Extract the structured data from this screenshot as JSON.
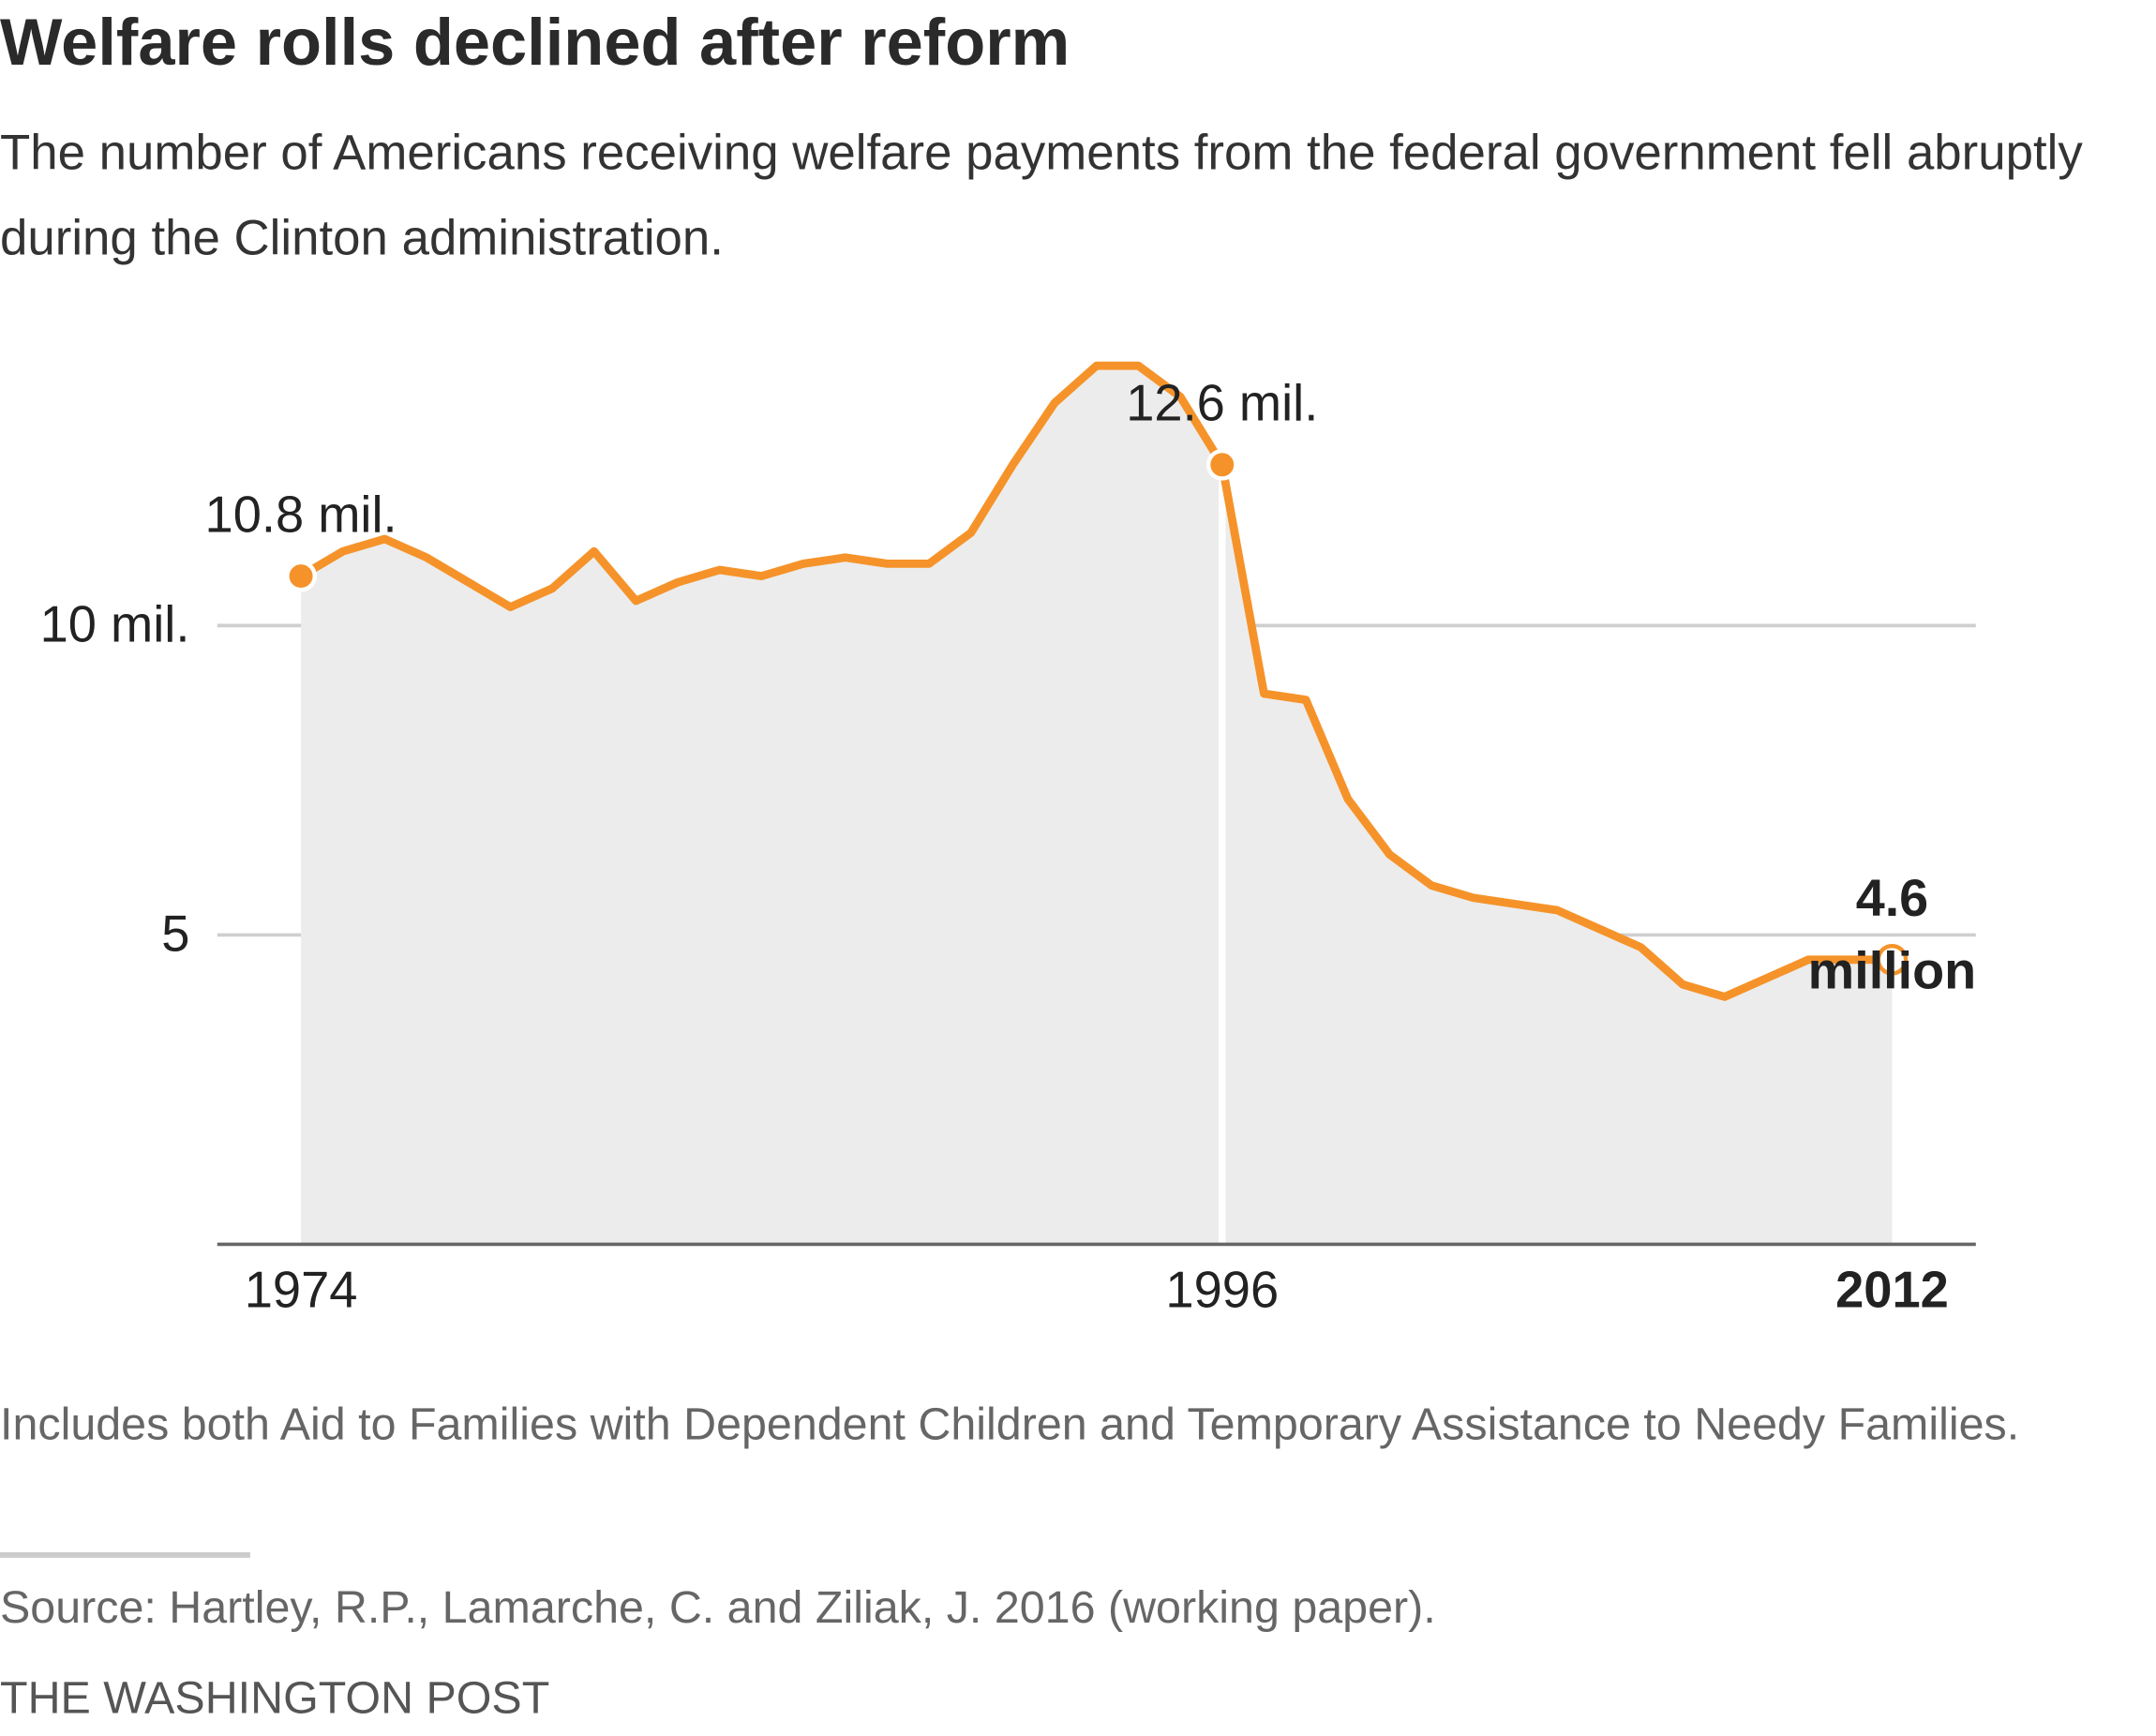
{
  "title": "Welfare rolls declined after reform",
  "subtitle": "The number of Americans receiving welfare payments from the federal government fell abruptly during the Clinton administration.",
  "chart_data": {
    "type": "line",
    "x": [
      1974,
      1975,
      1976,
      1977,
      1978,
      1979,
      1980,
      1981,
      1982,
      1983,
      1984,
      1985,
      1986,
      1987,
      1988,
      1989,
      1990,
      1991,
      1992,
      1993,
      1994,
      1995,
      1996,
      1997,
      1998,
      1999,
      2000,
      2001,
      2002,
      2003,
      2004,
      2005,
      2006,
      2007,
      2008,
      2009,
      2010,
      2011,
      2012
    ],
    "values": [
      10.8,
      11.2,
      11.4,
      11.1,
      10.7,
      10.3,
      10.6,
      11.2,
      10.4,
      10.7,
      10.9,
      10.8,
      11.0,
      11.1,
      11.0,
      11.0,
      11.5,
      12.6,
      13.6,
      14.2,
      14.2,
      13.7,
      12.6,
      8.9,
      8.8,
      7.2,
      6.3,
      5.8,
      5.6,
      5.5,
      5.4,
      5.1,
      4.8,
      4.2,
      4.0,
      4.3,
      4.6,
      4.6,
      4.6
    ],
    "color": "#f5932a",
    "xlim": [
      1972,
      2014
    ],
    "xticks": [
      1974,
      1996,
      2012
    ],
    "ylim": [
      0,
      15
    ],
    "yticks": [
      {
        "value": 10,
        "label": "10 mil."
      },
      5
    ],
    "grid": true,
    "annotations": [
      {
        "x": 1974,
        "y": 10.8,
        "lines": [
          "10.8 mil."
        ]
      },
      {
        "x": 1996,
        "y": 12.6,
        "lines": [
          "12.6 mil."
        ]
      },
      {
        "x": 2012,
        "y": 4.6,
        "lines": [
          "4.6",
          "million"
        ]
      }
    ]
  },
  "note": "Includes both Aid to Families with Dependent Children and Temporary Assistance to Needy Families.",
  "source": "Source: Hartley, R.P., Lamarche, C. and Ziliak, J. 2016 (working paper).",
  "credit": "THE WASHINGTON POST"
}
